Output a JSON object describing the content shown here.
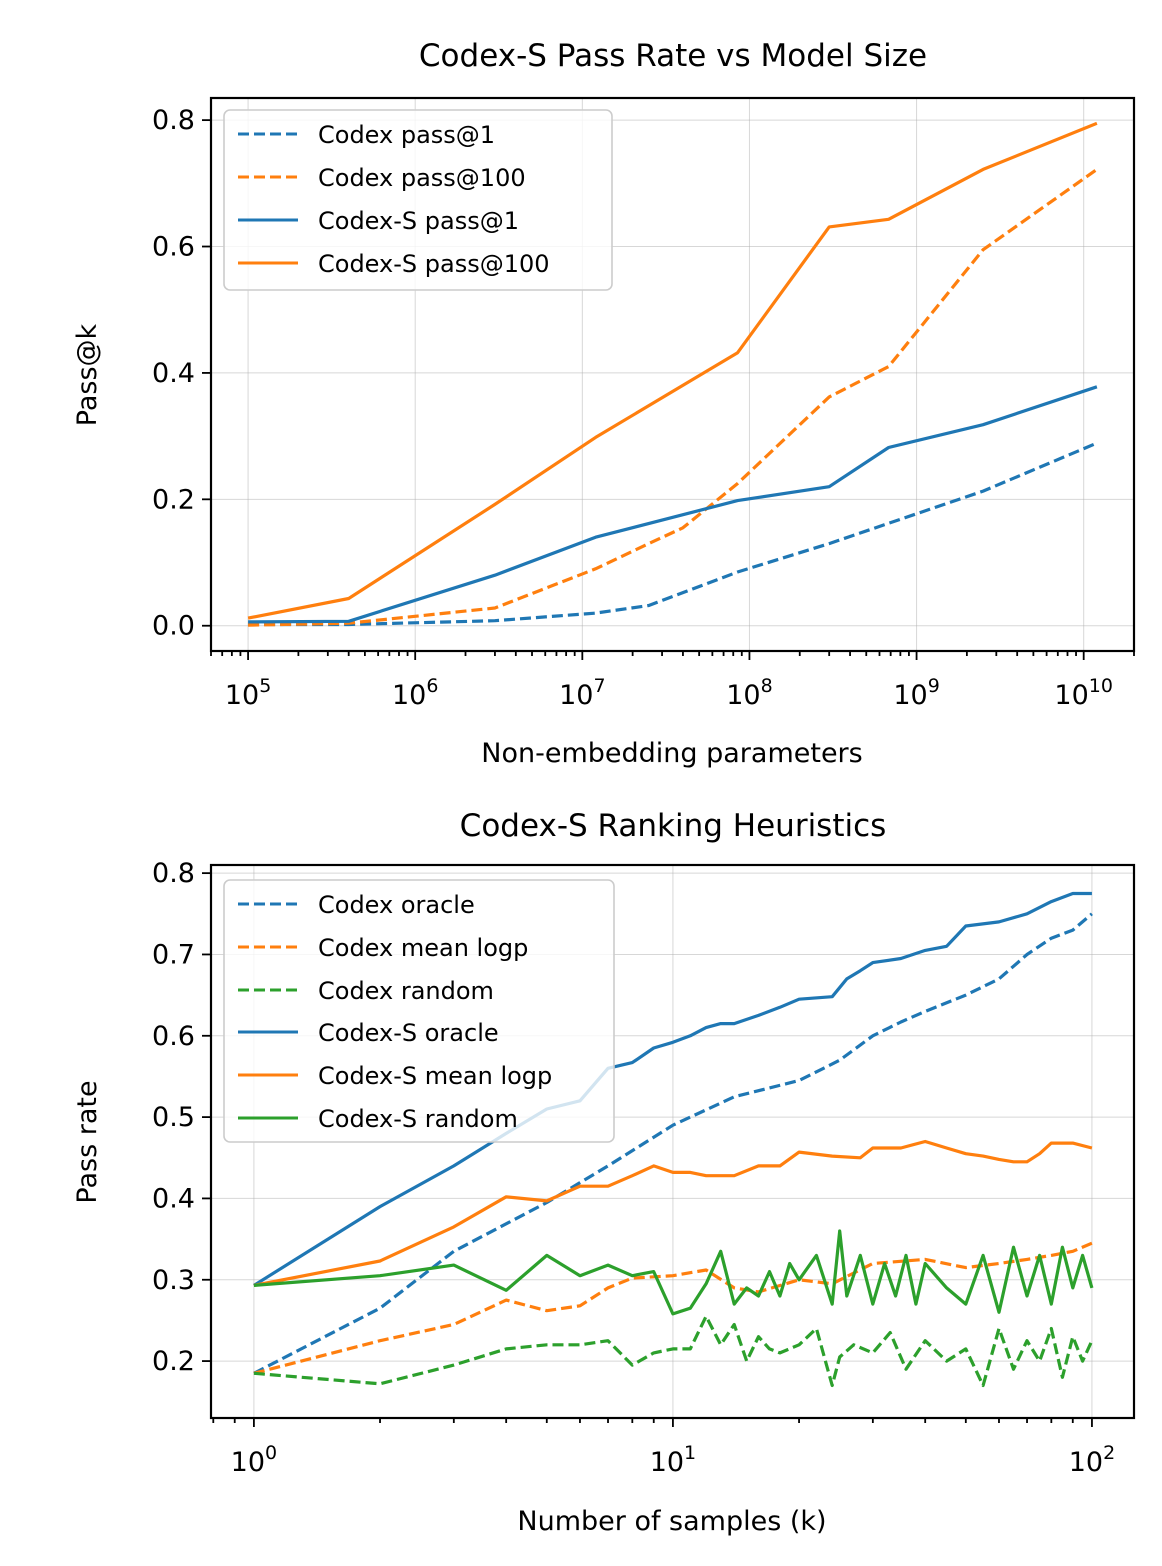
{
  "colors": {
    "blue": "#1f77b4",
    "orange": "#ff7f0e",
    "green": "#2ca02c",
    "grid": "#b0b0b0"
  },
  "chart_data": [
    {
      "type": "line",
      "title": "Codex-S Pass Rate vs Model Size",
      "xlabel": "Non-embedding parameters",
      "ylabel": "Pass@k",
      "xscale": "log",
      "xlim": [
        60000,
        20000000000
      ],
      "ylim": [
        -0.04,
        0.835
      ],
      "xticks": [
        {
          "value": 100000,
          "base": "10",
          "exp": "5"
        },
        {
          "value": 1000000,
          "base": "10",
          "exp": "6"
        },
        {
          "value": 10000000,
          "base": "10",
          "exp": "7"
        },
        {
          "value": 100000000,
          "base": "10",
          "exp": "8"
        },
        {
          "value": 1000000000,
          "base": "10",
          "exp": "9"
        },
        {
          "value": 10000000000,
          "base": "10",
          "exp": "10"
        }
      ],
      "yticks": [
        {
          "value": 0.0,
          "label": "0.0"
        },
        {
          "value": 0.2,
          "label": "0.2"
        },
        {
          "value": 0.4,
          "label": "0.4"
        },
        {
          "value": 0.6,
          "label": "0.6"
        },
        {
          "value": 0.8,
          "label": "0.8"
        }
      ],
      "grid": true,
      "legend_position": "top-left",
      "series": [
        {
          "name": "Codex pass@1",
          "color": "#1f77b4",
          "dashed": true,
          "x": [
            100000,
            400000,
            3000000,
            12000000,
            25000000,
            85000000,
            300000000,
            680000000,
            2500000000,
            12000000000
          ],
          "y": [
            0.002,
            0.002,
            0.008,
            0.02,
            0.032,
            0.085,
            0.13,
            0.162,
            0.213,
            0.289
          ]
        },
        {
          "name": "Codex pass@100",
          "color": "#ff7f0e",
          "dashed": true,
          "x": [
            100000,
            400000,
            3000000,
            12000000,
            25000000,
            40000000,
            85000000,
            300000000,
            680000000,
            2500000000,
            12000000000
          ],
          "y": [
            0.001,
            0.004,
            0.028,
            0.09,
            0.13,
            0.155,
            0.225,
            0.362,
            0.41,
            0.595,
            0.722
          ]
        },
        {
          "name": "Codex-S pass@1",
          "color": "#1f77b4",
          "dashed": false,
          "x": [
            100000,
            400000,
            3000000,
            12000000,
            85000000,
            300000000,
            680000000,
            2500000000,
            12000000000
          ],
          "y": [
            0.006,
            0.007,
            0.08,
            0.14,
            0.198,
            0.22,
            0.282,
            0.318,
            0.378
          ]
        },
        {
          "name": "Codex-S pass@100",
          "color": "#ff7f0e",
          "dashed": false,
          "x": [
            100000,
            400000,
            3000000,
            12000000,
            85000000,
            300000000,
            680000000,
            2500000000,
            12000000000
          ],
          "y": [
            0.012,
            0.043,
            0.192,
            0.298,
            0.432,
            0.631,
            0.643,
            0.722,
            0.795
          ]
        }
      ]
    },
    {
      "type": "line",
      "title": "Codex-S Ranking Heuristics",
      "xlabel": "Number of samples (k)",
      "ylabel": "Pass rate",
      "xscale": "log",
      "xlim": [
        0.79,
        126
      ],
      "ylim": [
        0.13,
        0.81
      ],
      "xticks": [
        {
          "value": 1,
          "base": "10",
          "exp": "0"
        },
        {
          "value": 10,
          "base": "10",
          "exp": "1"
        },
        {
          "value": 100,
          "base": "10",
          "exp": "2"
        }
      ],
      "yticks": [
        {
          "value": 0.2,
          "label": "0.2"
        },
        {
          "value": 0.3,
          "label": "0.3"
        },
        {
          "value": 0.4,
          "label": "0.4"
        },
        {
          "value": 0.5,
          "label": "0.5"
        },
        {
          "value": 0.6,
          "label": "0.6"
        },
        {
          "value": 0.7,
          "label": "0.7"
        },
        {
          "value": 0.8,
          "label": "0.8"
        }
      ],
      "grid": true,
      "legend_position": "top-left",
      "series": [
        {
          "name": "Codex oracle",
          "color": "#1f77b4",
          "dashed": true,
          "x": [
            1,
            2,
            3,
            5,
            7,
            10,
            14,
            20,
            25,
            30,
            35,
            40,
            50,
            60,
            70,
            80,
            90,
            100
          ],
          "y": [
            0.185,
            0.265,
            0.335,
            0.395,
            0.44,
            0.49,
            0.525,
            0.545,
            0.57,
            0.6,
            0.617,
            0.63,
            0.65,
            0.67,
            0.7,
            0.72,
            0.73,
            0.75
          ]
        },
        {
          "name": "Codex mean logp",
          "color": "#ff7f0e",
          "dashed": true,
          "x": [
            1,
            2,
            3,
            4,
            5,
            6,
            7,
            8,
            10,
            12,
            14,
            16,
            20,
            24,
            30,
            40,
            50,
            60,
            70,
            80,
            90,
            100
          ],
          "y": [
            0.185,
            0.225,
            0.245,
            0.275,
            0.262,
            0.268,
            0.29,
            0.302,
            0.305,
            0.312,
            0.29,
            0.285,
            0.3,
            0.295,
            0.32,
            0.325,
            0.315,
            0.32,
            0.325,
            0.33,
            0.335,
            0.345
          ]
        },
        {
          "name": "Codex random",
          "color": "#2ca02c",
          "dashed": true,
          "x": [
            1,
            2,
            3,
            4,
            5,
            6,
            7,
            8,
            9,
            10,
            11,
            12,
            13,
            14,
            15,
            16,
            17,
            18,
            20,
            22,
            24,
            25,
            27,
            30,
            33,
            36,
            40,
            45,
            50,
            55,
            60,
            65,
            70,
            75,
            80,
            85,
            90,
            95,
            100
          ],
          "y": [
            0.185,
            0.172,
            0.195,
            0.215,
            0.22,
            0.22,
            0.225,
            0.195,
            0.21,
            0.215,
            0.215,
            0.255,
            0.22,
            0.245,
            0.2,
            0.23,
            0.215,
            0.21,
            0.22,
            0.24,
            0.17,
            0.205,
            0.22,
            0.21,
            0.235,
            0.19,
            0.225,
            0.2,
            0.215,
            0.17,
            0.24,
            0.19,
            0.225,
            0.2,
            0.24,
            0.18,
            0.23,
            0.2,
            0.225
          ]
        },
        {
          "name": "Codex-S oracle",
          "color": "#1f77b4",
          "dashed": false,
          "x": [
            1,
            2,
            3,
            4,
            5,
            6,
            7,
            8,
            9,
            10,
            11,
            12,
            13,
            14,
            16,
            18,
            20,
            24,
            26,
            28,
            30,
            35,
            40,
            45,
            50,
            60,
            70,
            80,
            90,
            100
          ],
          "y": [
            0.293,
            0.39,
            0.44,
            0.48,
            0.51,
            0.52,
            0.56,
            0.567,
            0.585,
            0.592,
            0.6,
            0.61,
            0.615,
            0.615,
            0.625,
            0.635,
            0.645,
            0.648,
            0.67,
            0.68,
            0.69,
            0.695,
            0.705,
            0.71,
            0.735,
            0.74,
            0.75,
            0.765,
            0.775,
            0.775
          ]
        },
        {
          "name": "Codex-S mean logp",
          "color": "#ff7f0e",
          "dashed": false,
          "x": [
            1,
            2,
            3,
            4,
            5,
            6,
            7,
            8,
            9,
            10,
            11,
            12,
            14,
            16,
            18,
            20,
            24,
            28,
            30,
            35,
            40,
            45,
            50,
            55,
            60,
            65,
            70,
            75,
            80,
            90,
            100
          ],
          "y": [
            0.293,
            0.323,
            0.365,
            0.402,
            0.397,
            0.415,
            0.415,
            0.428,
            0.44,
            0.432,
            0.432,
            0.428,
            0.428,
            0.44,
            0.44,
            0.457,
            0.452,
            0.45,
            0.462,
            0.462,
            0.47,
            0.462,
            0.455,
            0.452,
            0.448,
            0.445,
            0.445,
            0.455,
            0.468,
            0.468,
            0.462
          ]
        },
        {
          "name": "Codex-S random",
          "color": "#2ca02c",
          "dashed": false,
          "x": [
            1,
            2,
            3,
            4,
            5,
            6,
            7,
            8,
            9,
            10,
            11,
            12,
            13,
            14,
            15,
            16,
            17,
            18,
            19,
            20,
            22,
            24,
            25,
            26,
            28,
            30,
            32,
            34,
            36,
            38,
            40,
            45,
            50,
            55,
            60,
            65,
            70,
            75,
            80,
            85,
            90,
            95,
            100
          ],
          "y": [
            0.293,
            0.305,
            0.318,
            0.287,
            0.33,
            0.305,
            0.318,
            0.305,
            0.31,
            0.258,
            0.265,
            0.295,
            0.335,
            0.27,
            0.29,
            0.28,
            0.31,
            0.28,
            0.32,
            0.3,
            0.33,
            0.27,
            0.36,
            0.28,
            0.33,
            0.27,
            0.32,
            0.28,
            0.33,
            0.27,
            0.32,
            0.29,
            0.27,
            0.33,
            0.26,
            0.34,
            0.28,
            0.33,
            0.27,
            0.34,
            0.29,
            0.33,
            0.29
          ]
        }
      ]
    }
  ]
}
